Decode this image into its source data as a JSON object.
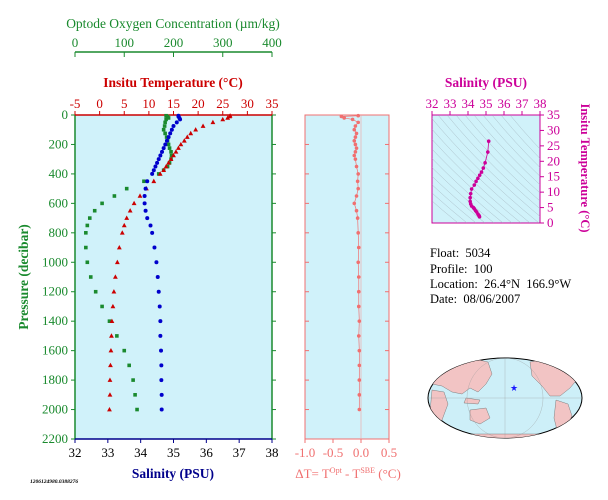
{
  "chart_data": [
    {
      "id": "profile",
      "type": "scatter",
      "y_axis": {
        "label": "Pressure (decibar)",
        "range": [
          2200,
          0
        ],
        "ticks": [
          0,
          200,
          400,
          600,
          800,
          1000,
          1200,
          1400,
          1600,
          1800,
          2000,
          2200
        ],
        "inverted": true
      },
      "axes": {
        "oxygen": {
          "label": "Optode Oxygen Concentration (µm/kg)",
          "range": [
            0,
            400
          ],
          "ticks": [
            0,
            100,
            200,
            300,
            400
          ],
          "color": "#1a8a2e"
        },
        "temperature": {
          "label": "Insitu Temperature (°C)",
          "range": [
            -5,
            35
          ],
          "ticks": [
            -5,
            0,
            5,
            10,
            15,
            20,
            25,
            30,
            35
          ],
          "color": "#cc0000"
        },
        "salinity": {
          "label": "Salinity (PSU)",
          "range": [
            32,
            38
          ],
          "ticks": [
            32,
            33,
            34,
            35,
            36,
            37,
            38
          ],
          "color": "#00008b"
        }
      },
      "series": [
        {
          "variable": "oxygen",
          "color": "#1a8a2e",
          "marker": "square",
          "pressure": [
            5,
            10,
            20,
            30,
            50,
            75,
            100,
            125,
            150,
            175,
            200,
            225,
            250,
            275,
            300,
            325,
            350,
            375,
            400,
            450,
            500,
            550,
            600,
            650,
            700,
            750,
            800,
            900,
            1000,
            1100,
            1200,
            1300,
            1400,
            1500,
            1600,
            1700,
            1800,
            1900,
            2000
          ],
          "values": [
            185,
            188,
            190,
            185,
            183,
            182,
            180,
            183,
            186,
            188,
            190,
            192,
            195,
            196,
            195,
            192,
            188,
            180,
            170,
            140,
            105,
            80,
            55,
            40,
            30,
            25,
            22,
            22,
            25,
            32,
            42,
            55,
            70,
            85,
            100,
            110,
            118,
            122,
            126
          ]
        },
        {
          "variable": "temperature",
          "color": "#cc0000",
          "marker": "triangle",
          "pressure": [
            5,
            10,
            20,
            30,
            50,
            75,
            100,
            125,
            150,
            175,
            200,
            225,
            250,
            275,
            300,
            325,
            350,
            375,
            400,
            450,
            500,
            550,
            600,
            650,
            700,
            750,
            800,
            900,
            1000,
            1100,
            1200,
            1300,
            1400,
            1500,
            1600,
            1700,
            1800,
            1900,
            2000
          ],
          "values": [
            26.5,
            26.4,
            26.0,
            25.0,
            23.0,
            21.0,
            19.5,
            18.5,
            17.8,
            17.2,
            16.5,
            16.0,
            15.5,
            15.0,
            14.5,
            14.0,
            13.5,
            13.0,
            12.3,
            11.0,
            9.5,
            8.2,
            7.0,
            6.2,
            5.5,
            5.0,
            4.6,
            4.0,
            3.6,
            3.2,
            2.9,
            2.7,
            2.5,
            2.4,
            2.3,
            2.2,
            2.1,
            2.1,
            2.0
          ]
        },
        {
          "variable": "salinity",
          "color": "#0000cc",
          "marker": "circle",
          "pressure": [
            5,
            10,
            20,
            30,
            50,
            75,
            100,
            125,
            150,
            175,
            200,
            225,
            250,
            275,
            300,
            325,
            350,
            375,
            400,
            450,
            500,
            550,
            600,
            650,
            700,
            750,
            800,
            900,
            1000,
            1100,
            1200,
            1300,
            1400,
            1500,
            1600,
            1700,
            1800,
            1900,
            2000
          ],
          "values": [
            35.15,
            35.15,
            35.18,
            35.2,
            35.1,
            35.0,
            34.95,
            34.9,
            34.85,
            34.8,
            34.75,
            34.7,
            34.65,
            34.6,
            34.55,
            34.5,
            34.45,
            34.4,
            34.35,
            34.2,
            34.15,
            34.12,
            34.12,
            34.15,
            34.2,
            34.3,
            34.35,
            34.42,
            34.48,
            34.52,
            34.55,
            34.58,
            34.6,
            34.6,
            34.62,
            34.63,
            34.63,
            34.64,
            34.64
          ]
        }
      ]
    },
    {
      "id": "delta_t",
      "type": "scatter",
      "x_axis": {
        "label_prefix": "ΔT= T",
        "label_sup1": "Opt",
        "label_mid": " - T",
        "label_sup2": "SBE",
        "label_suffix": " (°C)",
        "range": [
          -1.0,
          0.5
        ],
        "ticks": [
          "-1.0",
          "-0.5",
          "0.0",
          "0.5"
        ]
      },
      "y_axis": {
        "range": [
          2200,
          0
        ],
        "ticks": [
          0,
          200,
          400,
          600,
          800,
          1000,
          1200,
          1400,
          1600,
          1800,
          2000,
          2200
        ]
      },
      "color": "#f07070",
      "pressure": [
        5,
        10,
        20,
        30,
        50,
        75,
        100,
        125,
        150,
        175,
        200,
        225,
        250,
        275,
        300,
        350,
        400,
        450,
        500,
        550,
        600,
        650,
        700,
        800,
        900,
        1000,
        1100,
        1200,
        1300,
        1400,
        1500,
        1600,
        1700,
        1800,
        1900,
        2000
      ],
      "values": [
        -0.05,
        -0.35,
        -0.3,
        -0.15,
        -0.05,
        -0.1,
        -0.12,
        -0.08,
        -0.1,
        -0.12,
        -0.1,
        -0.08,
        -0.1,
        -0.12,
        -0.1,
        -0.08,
        -0.05,
        -0.06,
        -0.05,
        -0.08,
        -0.12,
        -0.08,
        -0.06,
        -0.05,
        -0.04,
        -0.05,
        -0.04,
        -0.04,
        -0.04,
        -0.03,
        -0.04,
        -0.03,
        -0.03,
        -0.03,
        -0.03,
        -0.03
      ]
    },
    {
      "id": "ts_diagram",
      "type": "scatter",
      "x_axis": {
        "label": "Salinity (PSU)",
        "range": [
          32,
          38
        ],
        "ticks": [
          32,
          33,
          34,
          35,
          36,
          37,
          38
        ]
      },
      "y_axis": {
        "label": "Insitu Temperature (°C)",
        "range": [
          0,
          35
        ],
        "ticks": [
          0,
          5,
          10,
          15,
          20,
          25,
          30,
          35
        ]
      },
      "color": "#cc0099",
      "salinity": [
        35.15,
        35.1,
        34.95,
        34.85,
        34.75,
        34.65,
        34.55,
        34.45,
        34.35,
        34.2,
        34.15,
        34.12,
        34.12,
        34.15,
        34.2,
        34.3,
        34.35,
        34.42,
        34.48,
        34.55,
        34.6,
        34.62,
        34.64
      ],
      "temperature": [
        26.5,
        23.0,
        19.5,
        17.8,
        16.5,
        15.5,
        14.5,
        13.5,
        12.3,
        11.0,
        9.5,
        8.2,
        7.0,
        6.2,
        5.5,
        5.0,
        4.6,
        4.0,
        3.6,
        2.9,
        2.5,
        2.3,
        2.0
      ]
    }
  ],
  "info": {
    "float": "Float:  5034",
    "profile": "Profile:  100",
    "location": "Location:  26.4°N  166.9°W",
    "date": "Date:  08/06/2007"
  },
  "footnote": "1206124980.0388276",
  "map": {
    "marker_color": "#1a1aff",
    "ocean_color": "#cdeff8",
    "land_color": "#f2c4c4"
  }
}
